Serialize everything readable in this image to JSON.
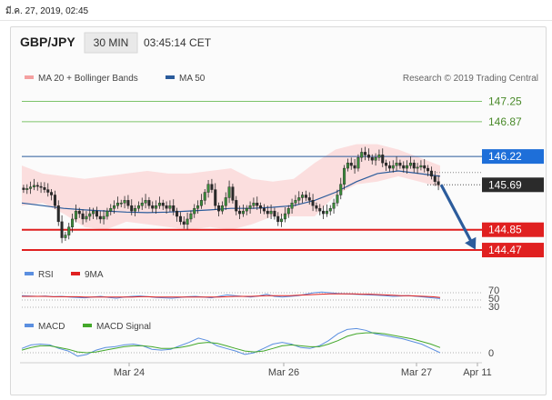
{
  "timestamp": "มี.ค. 27, 2019, 02:45",
  "header": {
    "pair": "GBP/JPY",
    "timeframe": "30 MIN",
    "time": "03:45:14 CET"
  },
  "legend": {
    "ma20_bb": "MA 20 + Bollinger Bands",
    "ma50": "MA 50",
    "research": "Research © 2019 Trading Central"
  },
  "indicators": {
    "rsi": {
      "label": "RSI",
      "ma_label": "9MA",
      "levels": [
        "70",
        "50",
        "30"
      ]
    },
    "macd": {
      "label": "MACD",
      "signal_label": "MACD Signal",
      "zero_label": "0"
    }
  },
  "colors": {
    "resistance": "#7cc36a",
    "support": "#e02020",
    "current": "#1e6fd9",
    "price_badge": "#2b2b2b",
    "ma50": "#2a5b9b",
    "bollinger": "#fbdada",
    "arrow": "#2c5c9c"
  },
  "chart_data": {
    "type": "candlestick",
    "symbol": "GBP/JPY",
    "x_ticks": [
      "Mar 24",
      "Mar 26",
      "Mar 27",
      "Apr 11"
    ],
    "y_ticks": [
      "147.25",
      "146.87",
      "146.22",
      "145.69",
      "144.85",
      "144.47"
    ],
    "ylim": [
      144.25,
      147.48
    ],
    "levels": [
      {
        "value": 147.25,
        "label": "147.25",
        "role": "resistance"
      },
      {
        "value": 146.87,
        "label": "146.87",
        "role": "resistance"
      },
      {
        "value": 146.22,
        "label": "146.22",
        "role": "current"
      },
      {
        "value": 144.85,
        "label": "144.85",
        "role": "support"
      },
      {
        "value": 144.47,
        "label": "144.47",
        "role": "support"
      }
    ],
    "last_price": 145.69,
    "closes": [
      145.6,
      145.62,
      145.65,
      145.68,
      145.66,
      145.64,
      145.6,
      145.55,
      145.5,
      145.3,
      145.0,
      144.7,
      144.75,
      144.9,
      145.05,
      145.2,
      145.15,
      145.05,
      145.1,
      145.15,
      145.2,
      145.1,
      145.05,
      145.1,
      145.2,
      145.25,
      145.3,
      145.35,
      145.35,
      145.4,
      145.3,
      145.2,
      145.25,
      145.3,
      145.35,
      145.4,
      145.3,
      145.25,
      145.3,
      145.35,
      145.3,
      145.25,
      145.3,
      145.2,
      145.1,
      145.0,
      144.95,
      145.05,
      145.15,
      145.25,
      145.3,
      145.4,
      145.55,
      145.7,
      145.6,
      145.3,
      145.2,
      145.3,
      145.45,
      145.65,
      145.4,
      145.2,
      145.15,
      145.2,
      145.25,
      145.3,
      145.35,
      145.3,
      145.25,
      145.2,
      145.15,
      145.2,
      145.1,
      145.0,
      145.05,
      145.15,
      145.25,
      145.35,
      145.4,
      145.45,
      145.5,
      145.45,
      145.4,
      145.3,
      145.25,
      145.2,
      145.15,
      145.2,
      145.25,
      145.35,
      145.5,
      145.7,
      146.0,
      146.1,
      146.05,
      146.0,
      146.2,
      146.3,
      146.25,
      146.2,
      146.15,
      146.2,
      146.25,
      146.1,
      146.05,
      146.0,
      146.05,
      146.1,
      146.05,
      146.0,
      146.05,
      146.1,
      146.0,
      146.02,
      146.05,
      146.0,
      145.95,
      145.85,
      145.75,
      145.69
    ],
    "bb_upper": [
      146.05,
      145.9,
      145.85,
      145.8,
      145.85,
      145.9,
      145.95,
      145.9,
      145.9,
      145.95,
      146.0,
      145.8,
      145.75,
      145.8,
      146.1,
      146.35,
      146.45,
      146.45,
      146.35,
      146.2,
      146.05
    ],
    "bb_lower": [
      145.3,
      145.35,
      145.15,
      144.9,
      144.85,
      145.0,
      144.95,
      144.9,
      144.85,
      144.9,
      144.85,
      144.95,
      145.1,
      145.1,
      145.1,
      145.5,
      145.7,
      145.75,
      145.85,
      145.75,
      145.65
    ],
    "ma50": [
      145.35,
      145.3,
      145.25,
      145.22,
      145.2,
      145.18,
      145.17,
      145.18,
      145.2,
      145.22,
      145.25,
      145.25,
      145.27,
      145.3,
      145.4,
      145.55,
      145.75,
      145.9,
      145.95,
      145.9,
      145.85
    ],
    "forecast": {
      "from": 145.69,
      "to": 144.47
    },
    "rsi": {
      "values": [
        62,
        61,
        60,
        61,
        59,
        60,
        58,
        57,
        56,
        58,
        60,
        57,
        55,
        58,
        60,
        61,
        59,
        57,
        56,
        55,
        57,
        59,
        60,
        58,
        56,
        60,
        64,
        62,
        60,
        58,
        61,
        66,
        60,
        58,
        60,
        62,
        66,
        70,
        72,
        70,
        68,
        67,
        66,
        65,
        64,
        63,
        62,
        60,
        61,
        62,
        60,
        58,
        56,
        54
      ],
      "ma": [
        60,
        60,
        60,
        60,
        59,
        59,
        59,
        59,
        58,
        58,
        58,
        58,
        58,
        58,
        58,
        59,
        59,
        58,
        58,
        58,
        58,
        58,
        58,
        58,
        58,
        58,
        59,
        60,
        60,
        60,
        61,
        62,
        62,
        62,
        62,
        63,
        64,
        65,
        66,
        67,
        67,
        67,
        67,
        66,
        66,
        65,
        64,
        63,
        62,
        62,
        61,
        60,
        59,
        57
      ]
    },
    "macd": {
      "values": [
        0.05,
        0.09,
        0.1,
        0.09,
        0.05,
        0.02,
        -0.04,
        -0.02,
        0.03,
        0.06,
        0.07,
        0.09,
        0.1,
        0.08,
        0.04,
        0.03,
        0.04,
        0.08,
        0.12,
        0.17,
        0.14,
        0.08,
        0.05,
        0.02,
        -0.02,
        0.0,
        0.05,
        0.1,
        0.12,
        0.1,
        0.06,
        0.05,
        0.08,
        0.14,
        0.22,
        0.27,
        0.28,
        0.26,
        0.22,
        0.2,
        0.18,
        0.16,
        0.13,
        0.1,
        0.05,
        0.0
      ],
      "signal": [
        0.03,
        0.06,
        0.08,
        0.08,
        0.06,
        0.04,
        0.01,
        0.0,
        0.01,
        0.03,
        0.05,
        0.07,
        0.08,
        0.08,
        0.07,
        0.05,
        0.05,
        0.06,
        0.08,
        0.11,
        0.12,
        0.11,
        0.08,
        0.05,
        0.02,
        0.01,
        0.02,
        0.05,
        0.08,
        0.09,
        0.08,
        0.07,
        0.07,
        0.1,
        0.14,
        0.19,
        0.22,
        0.23,
        0.23,
        0.22,
        0.2,
        0.18,
        0.16,
        0.13,
        0.1,
        0.06
      ]
    }
  }
}
